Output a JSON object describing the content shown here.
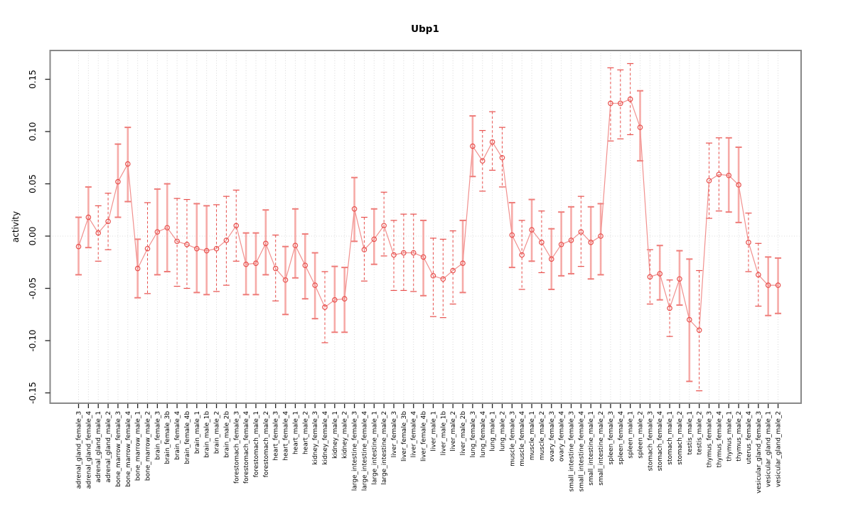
{
  "title": "Ubp1",
  "chart_data": {
    "type": "scatter",
    "title": "Ubp1",
    "xlabel": "",
    "ylabel": "activity",
    "ylim": [
      -0.168,
      0.178
    ],
    "yticks": [
      0.15,
      0.1,
      0.05,
      0.0,
      -0.05,
      -0.1,
      -0.15
    ],
    "grid": "vertical dotted line at every category; horizontal dotted line at y=0",
    "legend_position": "none",
    "colors": {
      "point": "#e8504d",
      "connect_line": "#f1908e",
      "solid_bar": "#f6aba8",
      "solid_bar_cap": "#ee7c79",
      "dashed_bar": "#e8504d",
      "box": "#888888",
      "gridline": "#d9d9d9",
      "tick": "#222222"
    },
    "points": [
      {
        "label": "adrenal_gland_female_3",
        "value": -0.01,
        "lo": -0.037,
        "hi": 0.018,
        "bar_style": "solid"
      },
      {
        "label": "adrenal_gland_female_4",
        "value": 0.018,
        "lo": -0.011,
        "hi": 0.047,
        "bar_style": "solid"
      },
      {
        "label": "adrenal_gland_male_1",
        "value": 0.003,
        "lo": -0.024,
        "hi": 0.029,
        "bar_style": "dashed"
      },
      {
        "label": "adrenal_gland_male_2",
        "value": 0.014,
        "lo": -0.013,
        "hi": 0.041,
        "bar_style": "dashed"
      },
      {
        "label": "bone_marrow_female_3",
        "value": 0.052,
        "lo": 0.018,
        "hi": 0.088,
        "bar_style": "solid"
      },
      {
        "label": "bone_marrow_female_4",
        "value": 0.069,
        "lo": 0.033,
        "hi": 0.104,
        "bar_style": "solid"
      },
      {
        "label": "bone_marrow_male_1",
        "value": -0.031,
        "lo": -0.059,
        "hi": -0.003,
        "bar_style": "solid"
      },
      {
        "label": "bone_marrow_male_2",
        "value": -0.012,
        "lo": -0.055,
        "hi": 0.032,
        "bar_style": "dashed"
      },
      {
        "label": "brain_female_3",
        "value": 0.004,
        "lo": -0.037,
        "hi": 0.045,
        "bar_style": "solid"
      },
      {
        "label": "brain_female_3b",
        "value": 0.008,
        "lo": -0.034,
        "hi": 0.05,
        "bar_style": "solid"
      },
      {
        "label": "brain_female_4",
        "value": -0.005,
        "lo": -0.048,
        "hi": 0.036,
        "bar_style": "dashed"
      },
      {
        "label": "brain_female_4b",
        "value": -0.008,
        "lo": -0.05,
        "hi": 0.035,
        "bar_style": "dashed"
      },
      {
        "label": "brain_male_1",
        "value": -0.012,
        "lo": -0.054,
        "hi": 0.031,
        "bar_style": "solid"
      },
      {
        "label": "brain_male_1b",
        "value": -0.014,
        "lo": -0.056,
        "hi": 0.029,
        "bar_style": "solid"
      },
      {
        "label": "brain_male_2",
        "value": -0.012,
        "lo": -0.053,
        "hi": 0.03,
        "bar_style": "dashed"
      },
      {
        "label": "brain_male_2b",
        "value": -0.004,
        "lo": -0.047,
        "hi": 0.038,
        "bar_style": "dashed"
      },
      {
        "label": "forestomach_female_3",
        "value": 0.01,
        "lo": -0.024,
        "hi": 0.044,
        "bar_style": "dashed"
      },
      {
        "label": "forestomach_female_4",
        "value": -0.027,
        "lo": -0.056,
        "hi": 0.003,
        "bar_style": "solid"
      },
      {
        "label": "forestomach_male_1",
        "value": -0.026,
        "lo": -0.056,
        "hi": 0.003,
        "bar_style": "solid"
      },
      {
        "label": "forestomach_male_2",
        "value": -0.007,
        "lo": -0.037,
        "hi": 0.025,
        "bar_style": "solid"
      },
      {
        "label": "heart_female_3",
        "value": -0.031,
        "lo": -0.062,
        "hi": 0.001,
        "bar_style": "dashed"
      },
      {
        "label": "heart_female_4",
        "value": -0.042,
        "lo": -0.075,
        "hi": -0.01,
        "bar_style": "solid"
      },
      {
        "label": "heart_male_1",
        "value": -0.009,
        "lo": -0.04,
        "hi": 0.026,
        "bar_style": "solid"
      },
      {
        "label": "heart_male_2",
        "value": -0.028,
        "lo": -0.06,
        "hi": 0.002,
        "bar_style": "solid"
      },
      {
        "label": "kidney_female_3",
        "value": -0.047,
        "lo": -0.079,
        "hi": -0.016,
        "bar_style": "solid"
      },
      {
        "label": "kidney_female_4",
        "value": -0.068,
        "lo": -0.102,
        "hi": -0.034,
        "bar_style": "dashed"
      },
      {
        "label": "kidney_male_1",
        "value": -0.061,
        "lo": -0.092,
        "hi": -0.029,
        "bar_style": "solid"
      },
      {
        "label": "kidney_male_2",
        "value": -0.06,
        "lo": -0.092,
        "hi": -0.03,
        "bar_style": "solid"
      },
      {
        "label": "large_intestine_female_3",
        "value": 0.026,
        "lo": -0.005,
        "hi": 0.056,
        "bar_style": "solid"
      },
      {
        "label": "large_intestine_female_4",
        "value": -0.013,
        "lo": -0.043,
        "hi": 0.018,
        "bar_style": "dashed"
      },
      {
        "label": "large_intestine_male_1",
        "value": -0.003,
        "lo": -0.027,
        "hi": 0.026,
        "bar_style": "solid"
      },
      {
        "label": "large_intestine_male_2",
        "value": 0.01,
        "lo": -0.019,
        "hi": 0.042,
        "bar_style": "dashed"
      },
      {
        "label": "liver_female_3",
        "value": -0.018,
        "lo": -0.052,
        "hi": 0.015,
        "bar_style": "dashed"
      },
      {
        "label": "liver_female_3b",
        "value": -0.016,
        "lo": -0.052,
        "hi": 0.021,
        "bar_style": "dashed"
      },
      {
        "label": "liver_female_4",
        "value": -0.016,
        "lo": -0.053,
        "hi": 0.021,
        "bar_style": "dashed"
      },
      {
        "label": "liver_female_4b",
        "value": -0.02,
        "lo": -0.057,
        "hi": 0.015,
        "bar_style": "solid"
      },
      {
        "label": "liver_male_1",
        "value": -0.038,
        "lo": -0.077,
        "hi": -0.002,
        "bar_style": "dashed"
      },
      {
        "label": "liver_male_1b",
        "value": -0.041,
        "lo": -0.078,
        "hi": -0.003,
        "bar_style": "dashed"
      },
      {
        "label": "liver_male_2",
        "value": -0.033,
        "lo": -0.065,
        "hi": 0.005,
        "bar_style": "dashed"
      },
      {
        "label": "liver_male_2b",
        "value": -0.026,
        "lo": -0.054,
        "hi": 0.015,
        "bar_style": "solid"
      },
      {
        "label": "lung_female_3",
        "value": 0.086,
        "lo": 0.057,
        "hi": 0.115,
        "bar_style": "solid"
      },
      {
        "label": "lung_female_4",
        "value": 0.072,
        "lo": 0.043,
        "hi": 0.101,
        "bar_style": "dashed"
      },
      {
        "label": "lung_male_1",
        "value": 0.09,
        "lo": 0.063,
        "hi": 0.119,
        "bar_style": "dashed"
      },
      {
        "label": "lung_male_2",
        "value": 0.075,
        "lo": 0.047,
        "hi": 0.104,
        "bar_style": "dashed"
      },
      {
        "label": "muscle_female_3",
        "value": 0.001,
        "lo": -0.03,
        "hi": 0.032,
        "bar_style": "solid"
      },
      {
        "label": "muscle_female_4",
        "value": -0.018,
        "lo": -0.051,
        "hi": 0.015,
        "bar_style": "dashed"
      },
      {
        "label": "muscle_male_1",
        "value": 0.006,
        "lo": -0.024,
        "hi": 0.035,
        "bar_style": "solid"
      },
      {
        "label": "muscle_male_2",
        "value": -0.006,
        "lo": -0.035,
        "hi": 0.024,
        "bar_style": "dashed"
      },
      {
        "label": "ovary_female_3",
        "value": -0.022,
        "lo": -0.051,
        "hi": 0.007,
        "bar_style": "solid"
      },
      {
        "label": "ovary_female_4",
        "value": -0.008,
        "lo": -0.038,
        "hi": 0.023,
        "bar_style": "solid"
      },
      {
        "label": "small_intestine_female_3",
        "value": -0.004,
        "lo": -0.036,
        "hi": 0.028,
        "bar_style": "solid"
      },
      {
        "label": "small_intestine_female_4",
        "value": 0.004,
        "lo": -0.029,
        "hi": 0.038,
        "bar_style": "dashed"
      },
      {
        "label": "small_intestine_male_1",
        "value": -0.006,
        "lo": -0.041,
        "hi": 0.028,
        "bar_style": "solid"
      },
      {
        "label": "small_intestine_male_2",
        "value": 0.0,
        "lo": -0.037,
        "hi": 0.031,
        "bar_style": "solid"
      },
      {
        "label": "spleen_female_3",
        "value": 0.127,
        "lo": 0.091,
        "hi": 0.161,
        "bar_style": "dashed"
      },
      {
        "label": "spleen_female_4",
        "value": 0.127,
        "lo": 0.093,
        "hi": 0.159,
        "bar_style": "dashed"
      },
      {
        "label": "spleen_male_1",
        "value": 0.131,
        "lo": 0.097,
        "hi": 0.165,
        "bar_style": "dashed"
      },
      {
        "label": "spleen_male_2",
        "value": 0.104,
        "lo": 0.072,
        "hi": 0.139,
        "bar_style": "solid"
      },
      {
        "label": "stomach_female_3",
        "value": -0.039,
        "lo": -0.065,
        "hi": -0.013,
        "bar_style": "dashed"
      },
      {
        "label": "stomach_female_4",
        "value": -0.036,
        "lo": -0.061,
        "hi": -0.009,
        "bar_style": "solid"
      },
      {
        "label": "stomach_male_1",
        "value": -0.069,
        "lo": -0.096,
        "hi": -0.042,
        "bar_style": "dashed"
      },
      {
        "label": "stomach_male_2",
        "value": -0.041,
        "lo": -0.066,
        "hi": -0.014,
        "bar_style": "solid"
      },
      {
        "label": "testis_male_1",
        "value": -0.08,
        "lo": -0.139,
        "hi": -0.022,
        "bar_style": "solid"
      },
      {
        "label": "testis_male_2",
        "value": -0.09,
        "lo": -0.148,
        "hi": -0.033,
        "bar_style": "dashed"
      },
      {
        "label": "thymus_female_3",
        "value": 0.053,
        "lo": 0.017,
        "hi": 0.089,
        "bar_style": "dashed"
      },
      {
        "label": "thymus_female_4",
        "value": 0.059,
        "lo": 0.024,
        "hi": 0.094,
        "bar_style": "dashed"
      },
      {
        "label": "thymus_male_1",
        "value": 0.058,
        "lo": 0.023,
        "hi": 0.094,
        "bar_style": "solid"
      },
      {
        "label": "thymus_male_2",
        "value": 0.049,
        "lo": 0.013,
        "hi": 0.085,
        "bar_style": "solid"
      },
      {
        "label": "uterus_female_4",
        "value": -0.006,
        "lo": -0.034,
        "hi": 0.022,
        "bar_style": "dashed"
      },
      {
        "label": "vesicular_gland_female_3",
        "value": -0.037,
        "lo": -0.067,
        "hi": -0.007,
        "bar_style": "dashed"
      },
      {
        "label": "vesicular_gland_male_1",
        "value": -0.047,
        "lo": -0.076,
        "hi": -0.02,
        "bar_style": "solid"
      },
      {
        "label": "vesicular_gland_male_2",
        "value": -0.047,
        "lo": -0.074,
        "hi": -0.021,
        "bar_style": "solid"
      }
    ]
  }
}
